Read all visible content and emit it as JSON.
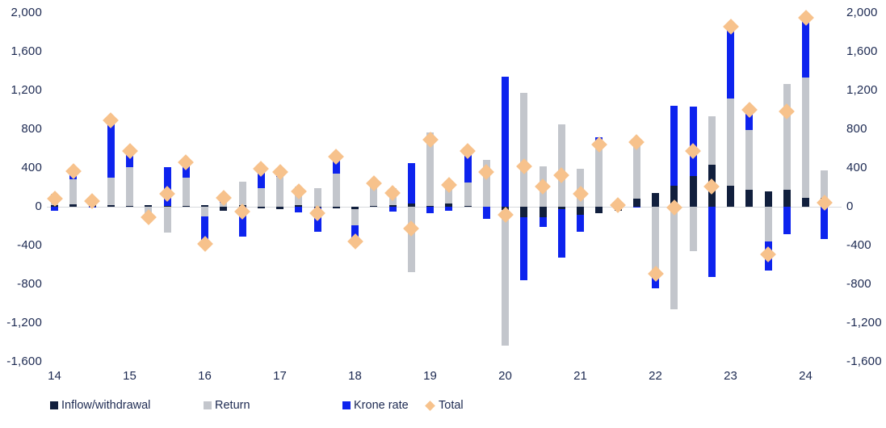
{
  "chart": {
    "y_axis": {
      "tick_values": [
        2000,
        1600,
        1200,
        800,
        400,
        0,
        -400,
        -800,
        -1200,
        -1600
      ],
      "tick_labels": [
        "2,000",
        "1,600",
        "1,200",
        "800",
        "400",
        "0",
        "-400",
        "-800",
        "-1,200",
        "-1,600"
      ],
      "min": -1600,
      "max": 2000,
      "shown_on": "both-sides"
    },
    "x_axis": {
      "year_labels": [
        "14",
        "15",
        "16",
        "17",
        "18",
        "19",
        "20",
        "21",
        "22",
        "23",
        "24"
      ]
    },
    "legend": [
      {
        "label": "Inflow/withdrawal",
        "marker": "square",
        "color": "#111f3d"
      },
      {
        "label": "Return",
        "marker": "square",
        "color": "#c3c6cc"
      },
      {
        "label": "Krone rate",
        "marker": "square",
        "color": "#0d23ee"
      },
      {
        "label": "Total",
        "marker": "diamond",
        "color": "#f7c28c"
      }
    ],
    "colors": {
      "inflow_withdrawal": "#111f3d",
      "return": "#c3c6cc",
      "krone_rate": "#0d23ee",
      "total": "#f7c28c",
      "axis_text": "#1c2951",
      "zero_line": "#d8dadd",
      "background": "#ffffff"
    }
  },
  "chart_data": {
    "type": "bar",
    "stacked": true,
    "grid": "off",
    "legend_position": "bottom",
    "ylim": [
      -1600,
      2000
    ],
    "ytick_step": 400,
    "categories": [
      "2014Q1",
      "2014Q2",
      "2014Q3",
      "2014Q4",
      "2015Q1",
      "2015Q2",
      "2015Q3",
      "2015Q4",
      "2016Q1",
      "2016Q2",
      "2016Q3",
      "2016Q4",
      "2017Q1",
      "2017Q2",
      "2017Q3",
      "2017Q4",
      "2018Q1",
      "2018Q2",
      "2018Q3",
      "2018Q4",
      "2019Q1",
      "2019Q2",
      "2019Q3",
      "2019Q4",
      "2020Q1",
      "2020Q2",
      "2020Q3",
      "2020Q4",
      "2021Q1",
      "2021Q2",
      "2021Q3",
      "2021Q4",
      "2022Q1",
      "2022Q2",
      "2022Q3",
      "2022Q4",
      "2023Q1",
      "2023Q2",
      "2023Q3",
      "2023Q4",
      "2024Q1",
      "2024Q2"
    ],
    "series": [
      {
        "name": "Inflow/withdrawal",
        "role": "bar",
        "color": "#111f3d",
        "values": [
          20,
          25,
          25,
          20,
          10,
          20,
          5,
          10,
          15,
          -40,
          15,
          -20,
          -25,
          20,
          -5,
          -20,
          -25,
          5,
          20,
          30,
          10,
          30,
          5,
          0,
          -30,
          -110,
          -110,
          -25,
          -85,
          -70,
          -40,
          85,
          145,
          215,
          315,
          430,
          215,
          175,
          160,
          175,
          90,
          90
        ]
      },
      {
        "name": "Return",
        "role": "bar",
        "color": "#c3c6cc",
        "values": [
          110,
          255,
          40,
          280,
          400,
          -85,
          -270,
          290,
          -100,
          45,
          245,
          195,
          305,
          190,
          190,
          345,
          -170,
          195,
          175,
          -675,
          755,
          235,
          245,
          480,
          -1400,
          1175,
          415,
          850,
          395,
          645,
          10,
          585,
          -670,
          -1055,
          -455,
          500,
          900,
          615,
          -355,
          1090,
          1245,
          285
        ]
      },
      {
        "name": "Krone rate",
        "role": "bar",
        "color": "#0d23ee",
        "values": [
          -45,
          90,
          -10,
          590,
          165,
          -45,
          400,
          160,
          -300,
          90,
          -310,
          215,
          75,
          -55,
          -250,
          195,
          -160,
          40,
          -50,
          420,
          -70,
          -40,
          325,
          -125,
          1345,
          -645,
          -100,
          -500,
          -175,
          70,
          45,
          -5,
          -170,
          830,
          715,
          -725,
          745,
          210,
          -300,
          -280,
          615,
          -330
        ]
      },
      {
        "name": "Total",
        "role": "marker-diamond",
        "color": "#f7c28c",
        "values": [
          85,
          370,
          55,
          890,
          575,
          -110,
          135,
          460,
          -385,
          95,
          -50,
          390,
          355,
          155,
          -65,
          520,
          -355,
          240,
          145,
          -225,
          695,
          225,
          575,
          355,
          -85,
          420,
          205,
          325,
          135,
          645,
          15,
          665,
          -695,
          -10,
          575,
          205,
          1860,
          1000,
          -495,
          985,
          1950,
          45
        ]
      }
    ]
  }
}
